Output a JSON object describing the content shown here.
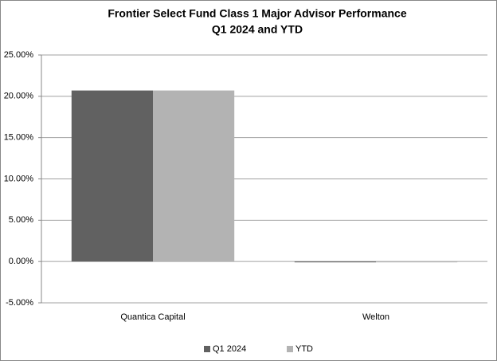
{
  "chart_data": {
    "type": "bar",
    "title": "Frontier Select Fund Class 1 Major Advisor Performance",
    "subtitle": "Q1 2024 and YTD",
    "categories": [
      "Quantica Capital",
      "Welton"
    ],
    "series": [
      {
        "name": "Q1 2024",
        "color": "#616161",
        "values": [
          20.7,
          -0.1
        ]
      },
      {
        "name": "YTD",
        "color": "#b3b3b3",
        "values": [
          20.7,
          -0.1
        ]
      }
    ],
    "ylim": [
      -5,
      25
    ],
    "yticks": [
      {
        "value": -5,
        "label": "-5.00%"
      },
      {
        "value": 0,
        "label": "0.00%"
      },
      {
        "value": 5,
        "label": "5.00%"
      },
      {
        "value": 10,
        "label": "10.00%"
      },
      {
        "value": 15,
        "label": "15.00%"
      },
      {
        "value": 20,
        "label": "20.00%"
      },
      {
        "value": 25,
        "label": "25.00%"
      }
    ],
    "grid": true,
    "legend": "bottom"
  }
}
